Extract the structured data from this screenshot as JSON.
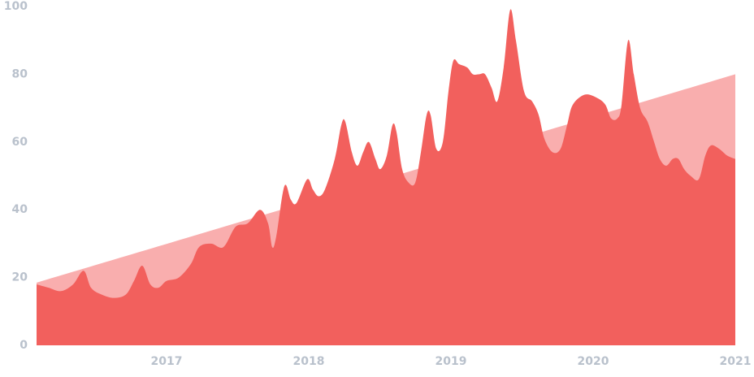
{
  "chart_data": {
    "type": "area",
    "xlim": [
      2016.086,
      2021
    ],
    "xticks": [
      2017,
      2018,
      2019,
      2020,
      2021
    ],
    "ylim": [
      0,
      100
    ],
    "yticks": [
      0,
      20,
      40,
      60,
      80,
      100
    ],
    "series": [
      {
        "color": "#f9aeae",
        "x": [
          2016.086,
          2021
        ],
        "values": [
          18.5,
          80
        ]
      },
      {
        "color": "#f2605d",
        "x": [
          2016.086,
          2016.171,
          2016.257,
          2016.343,
          2016.417,
          2016.469,
          2016.543,
          2016.629,
          2016.714,
          2016.771,
          2016.829,
          2016.886,
          2016.943,
          2017,
          2017.086,
          2017.171,
          2017.229,
          2017.314,
          2017.4,
          2017.486,
          2017.571,
          2017.657,
          2017.714,
          2017.743,
          2017.771,
          2017.829,
          2017.874,
          2017.914,
          2017.989,
          2018.029,
          2018.069,
          2018.114,
          2018.183,
          2018.229,
          2018.257,
          2018.303,
          2018.343,
          2018.383,
          2018.423,
          2018.469,
          2018.503,
          2018.549,
          2018.589,
          2018.617,
          2018.657,
          2018.703,
          2018.749,
          2018.789,
          2018.829,
          2018.857,
          2018.897,
          2018.943,
          2018.983,
          2019.017,
          2019.057,
          2019.114,
          2019.154,
          2019.2,
          2019.24,
          2019.286,
          2019.326,
          2019.371,
          2019.417,
          2019.457,
          2019.514,
          2019.571,
          2019.617,
          2019.657,
          2019.714,
          2019.771,
          2019.817,
          2019.857,
          2019.943,
          2020.029,
          2020.086,
          2020.126,
          2020.171,
          2020.2,
          2020.246,
          2020.286,
          2020.331,
          2020.383,
          2020.429,
          2020.469,
          2020.514,
          2020.56,
          2020.6,
          2020.64,
          2020.686,
          2020.743,
          2020.789,
          2020.829,
          2020.886,
          2020.943,
          2021
        ],
        "values": [
          18,
          17,
          16,
          18,
          22,
          17,
          15,
          14,
          15,
          19,
          23.5,
          18,
          17,
          19,
          20,
          24,
          29,
          30,
          29,
          35,
          36,
          40,
          36,
          29,
          32,
          47,
          43,
          42,
          49,
          46,
          44,
          46,
          55,
          65,
          66,
          57,
          53,
          57,
          60,
          55,
          52,
          56,
          65,
          63,
          52,
          48,
          48,
          57,
          68,
          68,
          58,
          60,
          75,
          84,
          83,
          82,
          80,
          80,
          80,
          76,
          72,
          82,
          99,
          90,
          75,
          72,
          68,
          61,
          57,
          58,
          65,
          71,
          74,
          73,
          71,
          67,
          67,
          71,
          90,
          80,
          70,
          66,
          60,
          55,
          53,
          55,
          55,
          52,
          50,
          49,
          56,
          59,
          58,
          56,
          55
        ]
      }
    ]
  }
}
